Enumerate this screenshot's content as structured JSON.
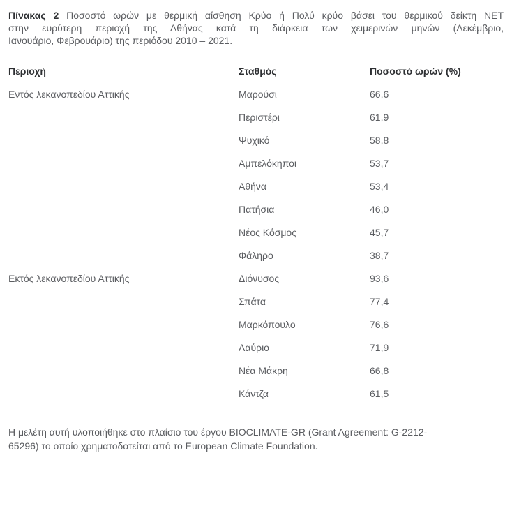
{
  "caption": {
    "label": "Πίνακας 2",
    "lines": [
      "Ποσοστό ωρών με θερμική αίσθηση Κρύο ή Πολύ κρύο βάσει του θερμικού δείκτη NET",
      "στην ευρύτερη περιοχή της Αθήνας κατά τη διάρκεια των χειμερινών μηνών (Δεκέμβριο,",
      "Ιανουάριο, Φεβρουάριο) της περιόδου 2010 – 2021."
    ],
    "full_text": "Πίνακας 2 Ποσοστό ωρών με θερμική αίσθηση Κρύο ή Πολύ κρύο βάσει του θερμικού δείκτη NET στην ευρύτερη περιοχή της Αθήνας κατά τη διάρκεια των χειμερινών μηνών (Δεκέμβριο, Ιανουάριο, Φεβρουάριο) της περιόδου 2010 – 2021."
  },
  "table": {
    "headers": [
      "Περιοχή",
      "Σταθμός",
      "Ποσοστό ωρών (%)"
    ],
    "rows": [
      {
        "region": "Εντός λεκανοπεδίου Αττικής",
        "station": "Μαρούσι",
        "value": "66,6"
      },
      {
        "region": "",
        "station": "Περιστέρι",
        "value": "61,9"
      },
      {
        "region": "",
        "station": "Ψυχικό",
        "value": "58,8"
      },
      {
        "region": "",
        "station": "Αμπελόκηποι",
        "value": "53,7"
      },
      {
        "region": "",
        "station": "Αθήνα",
        "value": "53,4"
      },
      {
        "region": "",
        "station": "Πατήσια",
        "value": "46,0"
      },
      {
        "region": "",
        "station": "Νέος Κόσμος",
        "value": "45,7"
      },
      {
        "region": "",
        "station": "Φάληρο",
        "value": "38,7"
      },
      {
        "region": "Εκτός λεκανοπεδίου Αττικής",
        "station": "Διόνυσος",
        "value": "93,6"
      },
      {
        "region": "",
        "station": "Σπάτα",
        "value": "77,4"
      },
      {
        "region": "",
        "station": "Μαρκόπουλο",
        "value": "76,6"
      },
      {
        "region": "",
        "station": "Λαύριο",
        "value": "71,9"
      },
      {
        "region": "",
        "station": "Νέα Μάκρη",
        "value": "66,8"
      },
      {
        "region": "",
        "station": "Κάντζα",
        "value": "61,5"
      }
    ]
  },
  "footer": {
    "lines": [
      "Η μελέτη αυτή υλοποιήθηκε στο πλαίσιο του έργου BIOCLIMATE-GR (Grant Agreement: G-2212-",
      "65296) το οποίο χρηματοδοτείται από το European Climate Foundation."
    ],
    "full_text": "Η μελέτη αυτή υλοποιήθηκε στο πλαίσιο του έργου BIOCLIMATE-GR (Grant Agreement: G-2212-65296) το οποίο χρηματοδοτείται από το European Climate Foundation."
  },
  "colors": {
    "background": "#ffffff",
    "heading_text": "#2e3033",
    "body_text": "#5b5d61"
  }
}
